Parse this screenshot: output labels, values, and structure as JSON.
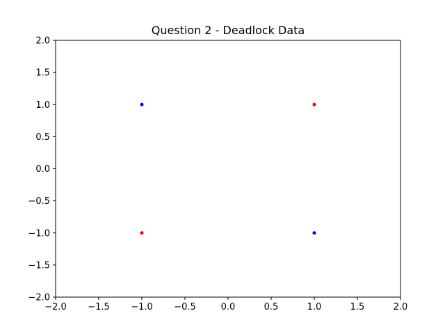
{
  "chart_data": {
    "type": "scatter",
    "title": "Question 2 - Deadlock Data",
    "xlabel": "",
    "ylabel": "",
    "xlim": [
      -2.0,
      2.0
    ],
    "ylim": [
      -2.0,
      2.0
    ],
    "xticks": [
      -2.0,
      -1.5,
      -1.0,
      -0.5,
      0.0,
      0.5,
      1.0,
      1.5,
      2.0
    ],
    "yticks": [
      -2.0,
      -1.5,
      -1.0,
      -0.5,
      0.0,
      0.5,
      1.0,
      1.5,
      2.0
    ],
    "xtick_labels": [
      "−2.0",
      "−1.5",
      "−1.0",
      "−0.5",
      "0.0",
      "0.5",
      "1.0",
      "1.5",
      "2.0"
    ],
    "ytick_labels": [
      "−2.0",
      "−1.5",
      "−1.0",
      "−0.5",
      "0.0",
      "0.5",
      "1.0",
      "1.5",
      "2.0"
    ],
    "grid": false,
    "legend": "none",
    "series": [
      {
        "color": "#0000ff",
        "points": [
          {
            "x": -1.0,
            "y": 1.0
          },
          {
            "x": 1.0,
            "y": -1.0
          }
        ]
      },
      {
        "color": "#ff0000",
        "points": [
          {
            "x": 1.0,
            "y": 1.0
          },
          {
            "x": -1.0,
            "y": -1.0
          }
        ]
      }
    ]
  }
}
